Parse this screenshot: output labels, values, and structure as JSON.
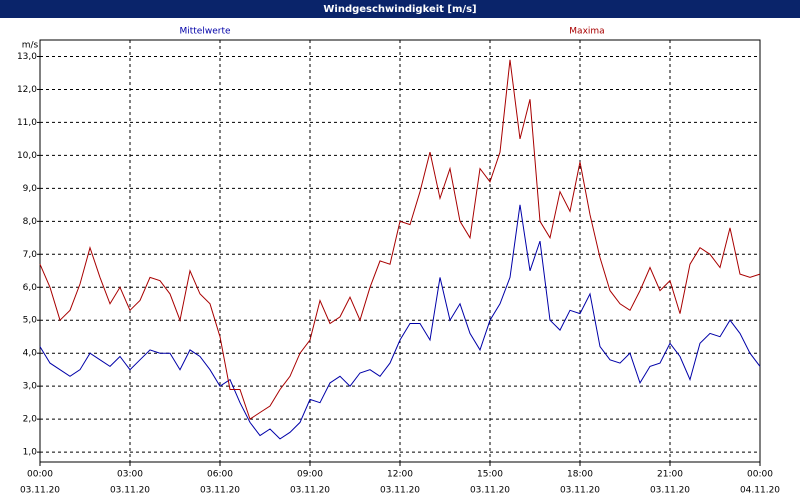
{
  "chart_data": {
    "type": "line",
    "title": "Windgeschwindigkeit [m/s]",
    "y_label": "m/s",
    "x": [
      0,
      20,
      40,
      60,
      80,
      100,
      120,
      140,
      160,
      180,
      200,
      220,
      240,
      260,
      280,
      300,
      320,
      340,
      360,
      380,
      400,
      420,
      440,
      460,
      480,
      500,
      520,
      540,
      560,
      580,
      600,
      620,
      640,
      660,
      680,
      700,
      720,
      740,
      760,
      780,
      800,
      820,
      840,
      860,
      880,
      900,
      920,
      940,
      960,
      980,
      1000,
      1020,
      1040,
      1060,
      1080,
      1100,
      1120,
      1140,
      1160,
      1180,
      1200,
      1220,
      1240,
      1260,
      1280,
      1300,
      1320,
      1340,
      1360,
      1380,
      1400,
      1420,
      1440
    ],
    "series": [
      {
        "name": "Mittelwerte",
        "color": "#0000a8",
        "values": [
          4.2,
          3.7,
          3.5,
          3.3,
          3.5,
          4.0,
          3.8,
          3.6,
          3.9,
          3.5,
          3.8,
          4.1,
          4.0,
          4.0,
          3.5,
          4.1,
          3.9,
          3.5,
          3.0,
          3.2,
          2.5,
          1.9,
          1.5,
          1.7,
          1.4,
          1.6,
          1.9,
          2.6,
          2.5,
          3.1,
          3.3,
          3.0,
          3.4,
          3.5,
          3.3,
          3.7,
          4.4,
          4.9,
          4.9,
          4.4,
          6.3,
          5.0,
          5.5,
          4.6,
          4.1,
          5.0,
          5.5,
          6.3,
          8.5,
          6.5,
          7.4,
          5.0,
          4.7,
          5.3,
          5.2,
          5.8,
          4.2,
          3.8,
          3.7,
          4.0,
          3.1,
          3.6,
          3.7,
          4.3,
          3.9,
          3.2,
          4.3,
          4.6,
          4.5,
          5.0,
          4.6,
          4.0,
          3.6
        ]
      },
      {
        "name": "Maxima",
        "color": "#a80000",
        "values": [
          6.7,
          6.0,
          5.0,
          5.3,
          6.1,
          7.2,
          6.3,
          5.5,
          6.0,
          5.3,
          5.6,
          6.3,
          6.2,
          5.8,
          5.0,
          6.5,
          5.8,
          5.5,
          4.5,
          2.9,
          2.9,
          2.0,
          2.2,
          2.4,
          2.9,
          3.3,
          4.0,
          4.4,
          5.6,
          4.9,
          5.1,
          5.7,
          5.0,
          6.0,
          6.8,
          6.7,
          8.0,
          7.9,
          8.9,
          10.1,
          8.7,
          9.6,
          8.0,
          7.5,
          9.6,
          9.2,
          10.1,
          12.9,
          10.5,
          11.7,
          8.0,
          7.5,
          8.9,
          8.3,
          9.8,
          8.2,
          6.9,
          5.9,
          5.5,
          5.3,
          5.9,
          6.6,
          5.9,
          6.2,
          5.2,
          6.7,
          7.2,
          7.0,
          6.6,
          7.8,
          6.4,
          6.3,
          6.4
        ]
      }
    ],
    "xlim": [
      0,
      1440
    ],
    "xticks": [
      {
        "value": 0,
        "label": "00:00"
      },
      {
        "value": 180,
        "label": "03:00"
      },
      {
        "value": 360,
        "label": "06:00"
      },
      {
        "value": 540,
        "label": "09:00"
      },
      {
        "value": 720,
        "label": "12:00"
      },
      {
        "value": 900,
        "label": "15:00"
      },
      {
        "value": 1080,
        "label": "18:00"
      },
      {
        "value": 1260,
        "label": "21:00"
      },
      {
        "value": 1440,
        "label": "00:00"
      }
    ],
    "xtick_dates": [
      "03.11.20",
      "03.11.20",
      "03.11.20",
      "03.11.20",
      "03.11.20",
      "03.11.20",
      "03.11.20",
      "03.11.20",
      "04.11.20"
    ],
    "ylim": [
      0.7,
      13.5
    ],
    "yticks": [
      {
        "value": 1,
        "label": "1,0"
      },
      {
        "value": 2,
        "label": "2,0"
      },
      {
        "value": 3,
        "label": "3,0"
      },
      {
        "value": 4,
        "label": "4,0"
      },
      {
        "value": 5,
        "label": "5,0"
      },
      {
        "value": 6,
        "label": "6,0"
      },
      {
        "value": 7,
        "label": "7,0"
      },
      {
        "value": 8,
        "label": "8,0"
      },
      {
        "value": 9,
        "label": "9,0"
      },
      {
        "value": 10,
        "label": "10,0"
      },
      {
        "value": 11,
        "label": "11,0"
      },
      {
        "value": 12,
        "label": "12,0"
      },
      {
        "value": 13,
        "label": "13,0"
      }
    ],
    "grid": true
  }
}
